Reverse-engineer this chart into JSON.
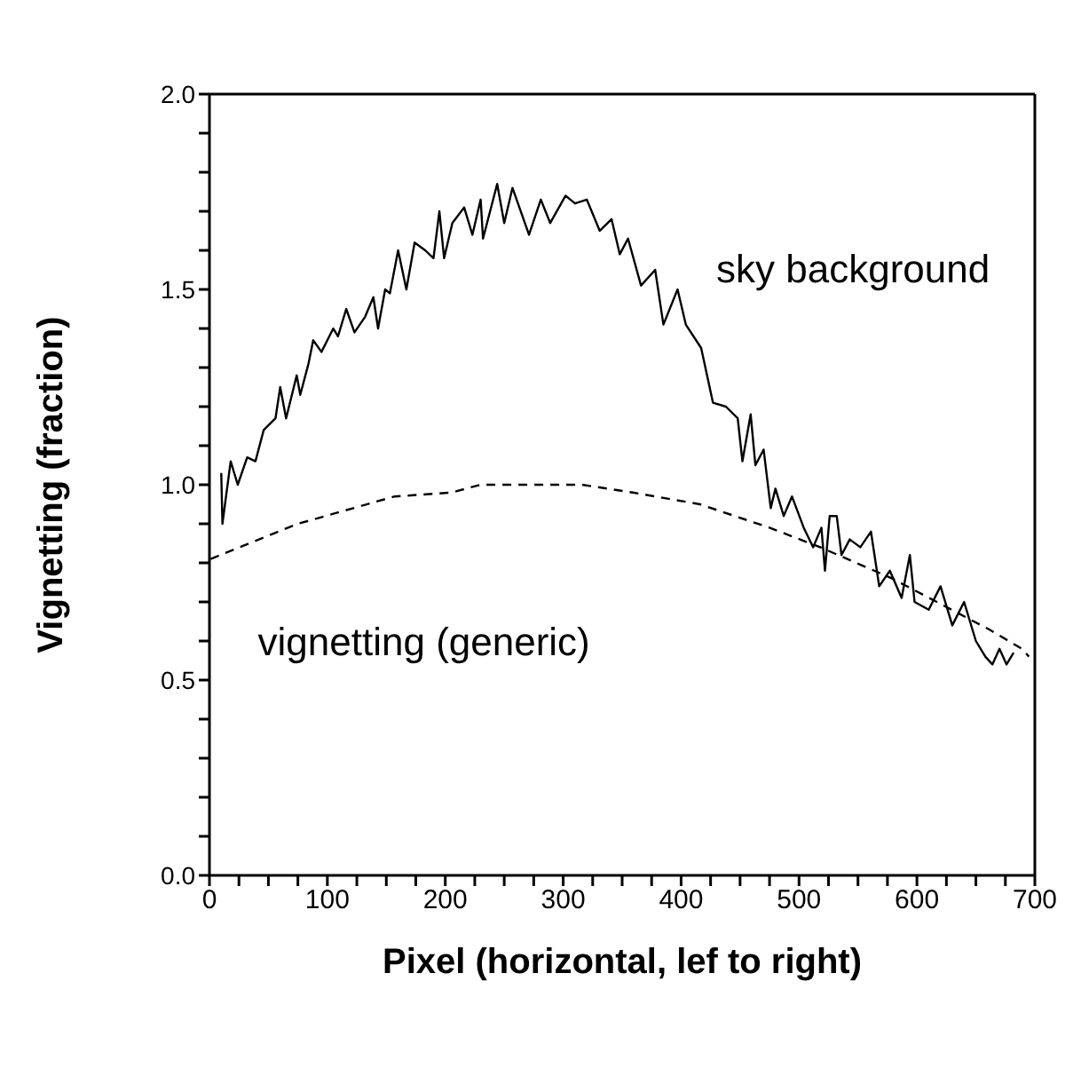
{
  "chart_data": {
    "type": "line",
    "xlabel": "Pixel (horizontal, lef to right)",
    "ylabel": "Vignetting (fraction)",
    "xlim": [
      0,
      700
    ],
    "ylim": [
      0,
      2
    ],
    "xticks": [
      0,
      {
        "value": 25,
        "label": null
      },
      {
        "value": 50,
        "label": null
      },
      {
        "value": 75,
        "label": null
      },
      100,
      {
        "value": 125,
        "label": null
      },
      {
        "value": 150,
        "label": null
      },
      {
        "value": 175,
        "label": null
      },
      200,
      {
        "value": 225,
        "label": null
      },
      {
        "value": 250,
        "label": null
      },
      {
        "value": 275,
        "label": null
      },
      300,
      {
        "value": 325,
        "label": null
      },
      {
        "value": 350,
        "label": null
      },
      {
        "value": 375,
        "label": null
      },
      400,
      {
        "value": 425,
        "label": null
      },
      {
        "value": 450,
        "label": null
      },
      {
        "value": 475,
        "label": null
      },
      500,
      {
        "value": 525,
        "label": null
      },
      {
        "value": 550,
        "label": null
      },
      {
        "value": 575,
        "label": null
      },
      600,
      {
        "value": 625,
        "label": null
      },
      {
        "value": 650,
        "label": null
      },
      {
        "value": 675,
        "label": null
      },
      700
    ],
    "yticks": [
      {
        "value": 0,
        "label": "0.0"
      },
      {
        "value": 0.1,
        "label": null
      },
      {
        "value": 0.2,
        "label": null
      },
      {
        "value": 0.3,
        "label": null
      },
      {
        "value": 0.4,
        "label": null
      },
      0.5,
      {
        "value": 0.6,
        "label": null
      },
      {
        "value": 0.7,
        "label": null
      },
      {
        "value": 0.8,
        "label": null
      },
      {
        "value": 0.9,
        "label": null
      },
      {
        "value": 1,
        "label": "1.0"
      },
      {
        "value": 1.1,
        "label": null
      },
      {
        "value": 1.2,
        "label": null
      },
      {
        "value": 1.3,
        "label": null
      },
      {
        "value": 1.4,
        "label": null
      },
      1.5,
      {
        "value": 1.6,
        "label": null
      },
      {
        "value": 1.7,
        "label": null
      },
      {
        "value": 1.8,
        "label": null
      },
      {
        "value": 1.9,
        "label": null
      },
      {
        "value": 2,
        "label": "2.0"
      }
    ],
    "grid": false,
    "legend": false,
    "marker": "none",
    "series": [
      {
        "name": "sky background",
        "color": "#000000",
        "line_style": "solid",
        "x": [
          10,
          11,
          18,
          24,
          32,
          39,
          46,
          56,
          60,
          65,
          74,
          77,
          84,
          88,
          95,
          105,
          109,
          116,
          123,
          132,
          139,
          143,
          149,
          153,
          160,
          167,
          174,
          183,
          190,
          195,
          199,
          206,
          216,
          223,
          230,
          232,
          244,
          250,
          257,
          271,
          281,
          289,
          302,
          310,
          320,
          331,
          341,
          348,
          355,
          366,
          378,
          385,
          397,
          404,
          417,
          427,
          438,
          448,
          452,
          459,
          463,
          470,
          476,
          480,
          487,
          494,
          504,
          512,
          519,
          522,
          526,
          532,
          536,
          543,
          552,
          561,
          568,
          577,
          587,
          594,
          598,
          610,
          620,
          630,
          640,
          650,
          658,
          664,
          670,
          676,
          682
        ],
        "values": [
          1.03,
          0.9,
          1.06,
          1.0,
          1.07,
          1.06,
          1.14,
          1.17,
          1.25,
          1.17,
          1.28,
          1.23,
          1.31,
          1.37,
          1.34,
          1.4,
          1.38,
          1.45,
          1.39,
          1.43,
          1.48,
          1.4,
          1.5,
          1.49,
          1.6,
          1.5,
          1.62,
          1.6,
          1.58,
          1.7,
          1.58,
          1.67,
          1.71,
          1.64,
          1.73,
          1.63,
          1.77,
          1.67,
          1.76,
          1.64,
          1.73,
          1.67,
          1.74,
          1.72,
          1.73,
          1.65,
          1.68,
          1.59,
          1.63,
          1.51,
          1.55,
          1.41,
          1.5,
          1.41,
          1.35,
          1.21,
          1.2,
          1.17,
          1.06,
          1.18,
          1.05,
          1.09,
          0.94,
          0.99,
          0.92,
          0.97,
          0.89,
          0.84,
          0.89,
          0.78,
          0.92,
          0.92,
          0.82,
          0.86,
          0.84,
          0.88,
          0.74,
          0.78,
          0.71,
          0.82,
          0.7,
          0.68,
          0.74,
          0.64,
          0.7,
          0.6,
          0.56,
          0.54,
          0.58,
          0.54,
          0.57
        ]
      },
      {
        "name": "vignetting (generic)",
        "color": "#000000",
        "line_style": "dashed",
        "x": [
          1,
          75,
          157,
          205,
          230,
          316,
          359,
          416,
          475,
          518,
          579,
          661,
          689,
          695
        ],
        "values": [
          0.81,
          0.9,
          0.97,
          0.98,
          1.0,
          1.0,
          0.98,
          0.95,
          0.89,
          0.84,
          0.76,
          0.63,
          0.58,
          0.56
        ]
      }
    ]
  }
}
